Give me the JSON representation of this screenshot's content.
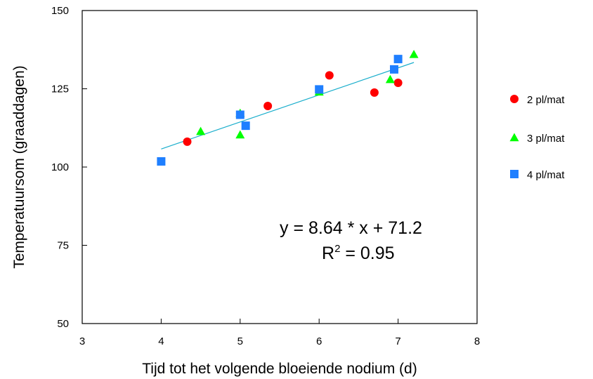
{
  "chart_data": {
    "type": "scatter",
    "title": "",
    "xlabel": "Tijd tot het volgende bloeiende nodium (d)",
    "ylabel": "Temperatuursom (graaddagen)",
    "xlim": [
      3,
      8
    ],
    "ylim": [
      50,
      150
    ],
    "x_ticks": [
      "3",
      "4",
      "5",
      "6",
      "7",
      "8"
    ],
    "y_ticks": [
      "50",
      "75",
      "100",
      "125",
      "150"
    ],
    "grid": false,
    "legend_position": "right",
    "series": [
      {
        "name": "2 pl/mat",
        "marker": "circle",
        "color": "#ff0000",
        "points": [
          {
            "x": 4.33,
            "y": 108.1
          },
          {
            "x": 5.35,
            "y": 119.5
          },
          {
            "x": 6.13,
            "y": 129.3
          },
          {
            "x": 6.7,
            "y": 123.8
          },
          {
            "x": 7.0,
            "y": 126.9
          }
        ]
      },
      {
        "name": "3 pl/mat",
        "marker": "triangle",
        "color": "#00ff00",
        "points": [
          {
            "x": 4.5,
            "y": 111.4
          },
          {
            "x": 5.0,
            "y": 110.3
          },
          {
            "x": 5.0,
            "y": 117.2
          },
          {
            "x": 6.0,
            "y": 124.0
          },
          {
            "x": 6.9,
            "y": 128.0
          },
          {
            "x": 7.2,
            "y": 136.0
          }
        ]
      },
      {
        "name": "4 pl/mat",
        "marker": "square",
        "color": "#1f7fff",
        "points": [
          {
            "x": 4.0,
            "y": 101.8
          },
          {
            "x": 5.0,
            "y": 116.7
          },
          {
            "x": 5.07,
            "y": 113.2
          },
          {
            "x": 6.0,
            "y": 124.8
          },
          {
            "x": 6.95,
            "y": 131.2
          },
          {
            "x": 7.0,
            "y": 134.5
          }
        ]
      }
    ],
    "regression": {
      "slope": 8.64,
      "intercept": 71.2,
      "x_range": [
        4.0,
        7.2
      ],
      "color": "#1aaecc",
      "equation_label": "y = 8.64 *  x + 71.2",
      "r2_base": "R",
      "r2_exp": "2",
      "r2_value": " = 0.95"
    }
  }
}
